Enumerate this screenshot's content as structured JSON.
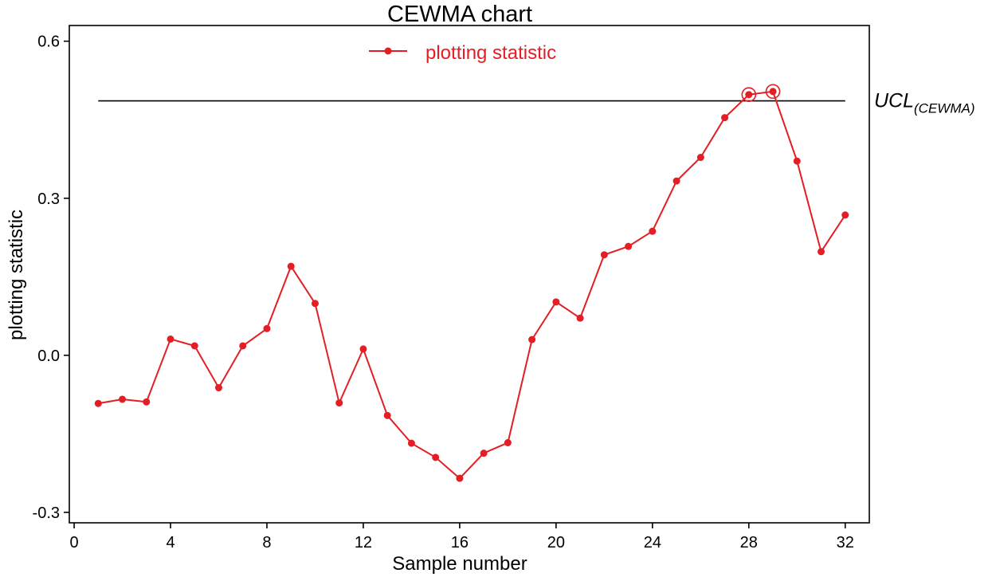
{
  "chart_data": {
    "type": "line",
    "title": "CEWMA chart",
    "xlabel": "Sample number",
    "ylabel": "plotting statistic",
    "xlim": [
      -0.2,
      33
    ],
    "ylim": [
      -0.32,
      0.63
    ],
    "xticks": [
      0,
      4,
      8,
      12,
      16,
      20,
      24,
      28,
      32
    ],
    "yticks": [
      -0.3,
      0.0,
      0.3,
      0.6
    ],
    "ytick_labels": [
      "-0.3",
      "0.0",
      "0.3",
      "0.6"
    ],
    "legend": {
      "position": "top-center"
    },
    "grid": false,
    "colors": {
      "series": "#e31e24",
      "ucl": "#000000"
    },
    "series": [
      {
        "name": "plotting statistic",
        "x": [
          1,
          2,
          3,
          4,
          5,
          6,
          7,
          8,
          9,
          10,
          11,
          12,
          13,
          14,
          15,
          16,
          17,
          18,
          19,
          20,
          21,
          22,
          23,
          24,
          25,
          26,
          27,
          28,
          29,
          30,
          31,
          32
        ],
        "y": [
          -0.092,
          -0.084,
          -0.089,
          0.031,
          0.018,
          -0.062,
          0.018,
          0.051,
          0.17,
          0.099,
          -0.091,
          0.012,
          -0.115,
          -0.168,
          -0.195,
          -0.235,
          -0.187,
          -0.167,
          0.03,
          0.102,
          0.071,
          0.192,
          0.208,
          0.237,
          0.333,
          0.378,
          0.454,
          0.498,
          0.504,
          0.371,
          0.198,
          0.268
        ]
      }
    ],
    "control_limit": {
      "value": 0.486,
      "x_range": [
        1,
        32
      ],
      "label_main": "UCL",
      "label_sub": "(CEWMA)"
    },
    "out_of_control_x": [
      28,
      29
    ]
  }
}
